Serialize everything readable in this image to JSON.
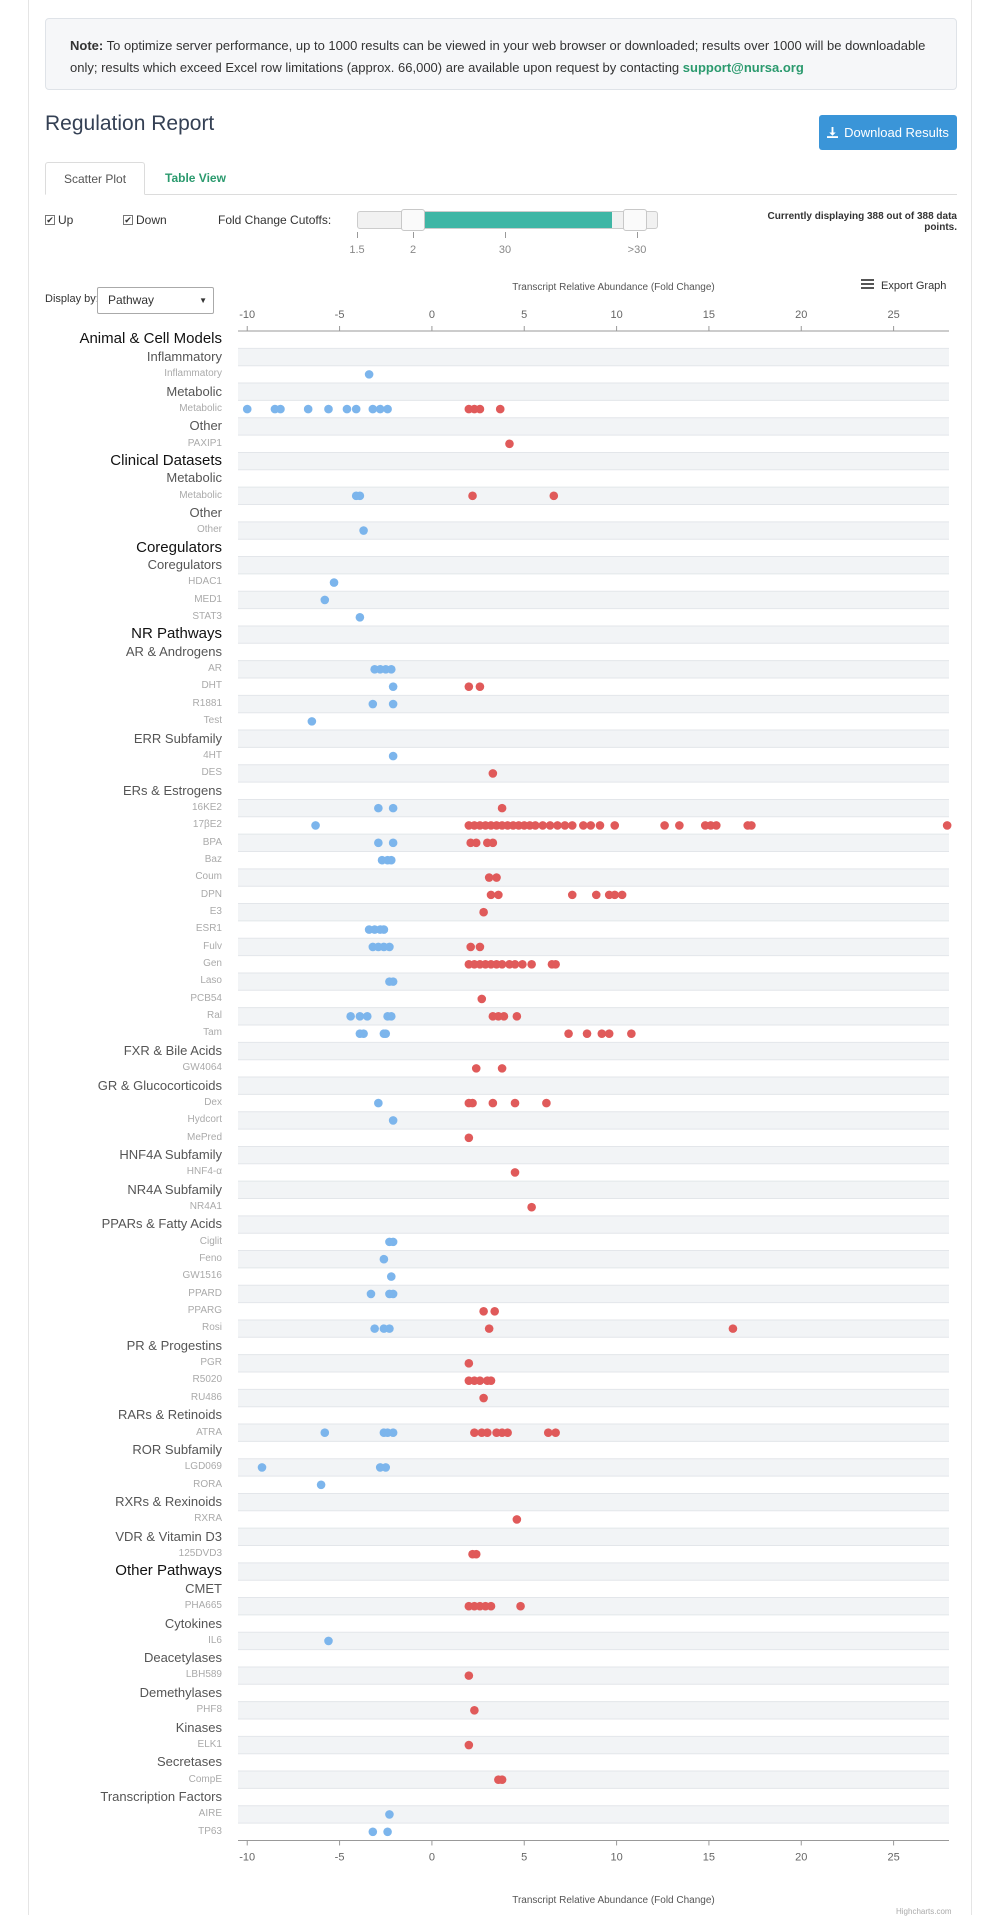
{
  "note": {
    "bold": "Note:",
    "text": " To optimize server performance, up to 1000 results can be viewed in your web browser or downloaded; results over 1000 will be downloadable only; results which exceed Excel row limitations (approx. 66,000) are available upon request by contacting ",
    "email": "support@nursa.org"
  },
  "report": {
    "title": "Regulation Report",
    "download_label": "Download Results"
  },
  "tabs": [
    {
      "label": "Scatter Plot"
    },
    {
      "label": "Table View"
    }
  ],
  "filters": {
    "up_label": "Up",
    "down_label": "Down",
    "up_checked": true,
    "down_checked": true,
    "fold_change_label": "Fold Change Cutoffs:",
    "slider_ticks": [
      "1.5",
      "2",
      "30",
      ">30"
    ],
    "slider_low": "2",
    "slider_high": ">30",
    "display_status": "Currently displaying 388 out of 388 data points."
  },
  "display_by": {
    "label": "Display by:",
    "selected": "Pathway"
  },
  "colors": {
    "down": "#7cb5ec",
    "up": "#e05a5a",
    "band": "#f2f4f6",
    "teal": "#3fb6a5",
    "button": "#3a95d8"
  },
  "icons": {
    "download": "download-icon",
    "export": "menu-icon"
  },
  "chart_data": {
    "type": "scatter",
    "xlabel": "Transcript Relative Abundance (Fold Change)",
    "xlim": [
      -10.5,
      28
    ],
    "xticks": [
      -10,
      -5,
      0,
      5,
      10,
      15,
      20,
      25
    ],
    "export_label": "Export Graph",
    "credit": "Highcharts.com",
    "series": [
      {
        "name": "Down",
        "color": "#7cb5ec"
      },
      {
        "name": "Up",
        "color": "#e05a5a"
      }
    ],
    "rows": [
      {
        "label": "Animal & Cell Models",
        "level": 0,
        "points": []
      },
      {
        "label": "Inflammatory",
        "level": 1,
        "points": []
      },
      {
        "label": "Inflammatory",
        "level": 2,
        "points": [
          -3.4
        ]
      },
      {
        "label": "Metabolic",
        "level": 1,
        "points": []
      },
      {
        "label": "Metabolic",
        "level": 2,
        "points": [
          -10,
          -8.5,
          -8.2,
          -6.7,
          -5.6,
          -4.6,
          -4.1,
          -3.2,
          -2.8,
          -2.4,
          2,
          2.3,
          2.6,
          3.7
        ]
      },
      {
        "label": "Other",
        "level": 1,
        "points": []
      },
      {
        "label": "PAXIP1",
        "level": 2,
        "points": [
          4.2
        ]
      },
      {
        "label": "Clinical Datasets",
        "level": 0,
        "points": []
      },
      {
        "label": "Metabolic",
        "level": 1,
        "points": []
      },
      {
        "label": "Metabolic",
        "level": 2,
        "points": [
          -4.1,
          -3.9,
          2.2,
          6.6
        ]
      },
      {
        "label": "Other",
        "level": 1,
        "points": []
      },
      {
        "label": "Other",
        "level": 2,
        "points": [
          -3.7
        ]
      },
      {
        "label": "Coregulators",
        "level": 0,
        "points": []
      },
      {
        "label": "Coregulators",
        "level": 1,
        "points": []
      },
      {
        "label": "HDAC1",
        "level": 2,
        "points": [
          -5.3
        ]
      },
      {
        "label": "MED1",
        "level": 2,
        "points": [
          -5.8
        ]
      },
      {
        "label": "STAT3",
        "level": 2,
        "points": [
          -3.9
        ]
      },
      {
        "label": "NR Pathways",
        "level": 0,
        "points": []
      },
      {
        "label": "AR & Androgens",
        "level": 1,
        "points": []
      },
      {
        "label": "AR",
        "level": 2,
        "points": [
          -3.1,
          -2.8,
          -2.5,
          -2.2
        ]
      },
      {
        "label": "DHT",
        "level": 2,
        "points": [
          -2.1,
          2,
          2.6
        ]
      },
      {
        "label": "R1881",
        "level": 2,
        "points": [
          -3.2,
          -2.1
        ]
      },
      {
        "label": "Test",
        "level": 2,
        "points": [
          -6.5
        ]
      },
      {
        "label": "ERR Subfamily",
        "level": 1,
        "points": []
      },
      {
        "label": "4HT",
        "level": 2,
        "points": [
          -2.1
        ]
      },
      {
        "label": "DES",
        "level": 2,
        "points": [
          3.3
        ]
      },
      {
        "label": "ERs & Estrogens",
        "level": 1,
        "points": []
      },
      {
        "label": "16KE2",
        "level": 2,
        "points": [
          -2.9,
          -2.1,
          3.8
        ]
      },
      {
        "label": "17βE2",
        "level": 2,
        "points": [
          -6.3,
          2,
          2.3,
          2.6,
          2.9,
          3.2,
          3.5,
          3.8,
          4.1,
          4.4,
          4.7,
          5,
          5.3,
          5.6,
          6,
          6.4,
          6.8,
          7.2,
          7.6,
          8.2,
          8.6,
          9.1,
          9.9,
          12.6,
          13.4,
          14.8,
          15.1,
          15.4,
          17.1,
          17.3,
          27.9
        ]
      },
      {
        "label": "BPA",
        "level": 2,
        "points": [
          -2.9,
          -2.1,
          2.1,
          2.4,
          3,
          3.3
        ]
      },
      {
        "label": "Baz",
        "level": 2,
        "points": [
          -2.7,
          -2.4,
          -2.2
        ]
      },
      {
        "label": "Coum",
        "level": 2,
        "points": [
          3.1,
          3.5
        ]
      },
      {
        "label": "DPN",
        "level": 2,
        "points": [
          3.2,
          3.6,
          7.6,
          8.9,
          9.6,
          9.9,
          10.3
        ]
      },
      {
        "label": "E3",
        "level": 2,
        "points": [
          2.8
        ]
      },
      {
        "label": "ESR1",
        "level": 2,
        "points": [
          -3.4,
          -3.1,
          -2.8,
          -2.6
        ]
      },
      {
        "label": "Fulv",
        "level": 2,
        "points": [
          -3.2,
          -2.9,
          -2.6,
          -2.3,
          2.1,
          2.6
        ]
      },
      {
        "label": "Gen",
        "level": 2,
        "points": [
          2,
          2.3,
          2.6,
          2.9,
          3.2,
          3.5,
          3.8,
          4.2,
          4.5,
          4.9,
          5.4,
          6.5,
          6.7
        ]
      },
      {
        "label": "Laso",
        "level": 2,
        "points": [
          -2.3,
          -2.1
        ]
      },
      {
        "label": "PCB54",
        "level": 2,
        "points": [
          2.7
        ]
      },
      {
        "label": "Ral",
        "level": 2,
        "points": [
          -4.4,
          -3.9,
          -3.5,
          -2.4,
          -2.2,
          3.3,
          3.6,
          3.9,
          4.6
        ]
      },
      {
        "label": "Tam",
        "level": 2,
        "points": [
          -3.9,
          -3.7,
          -2.6,
          -2.5,
          7.4,
          8.4,
          9.2,
          9.6,
          10.8
        ]
      },
      {
        "label": "FXR & Bile Acids",
        "level": 1,
        "points": []
      },
      {
        "label": "GW4064",
        "level": 2,
        "points": [
          2.4,
          3.8
        ]
      },
      {
        "label": "GR & Glucocorticoids",
        "level": 1,
        "points": []
      },
      {
        "label": "Dex",
        "level": 2,
        "points": [
          -2.9,
          2,
          2.2,
          3.3,
          4.5,
          6.2
        ]
      },
      {
        "label": "Hydcort",
        "level": 2,
        "points": [
          -2.1
        ]
      },
      {
        "label": "MePred",
        "level": 2,
        "points": [
          2
        ]
      },
      {
        "label": "HNF4A Subfamily",
        "level": 1,
        "points": []
      },
      {
        "label": "HNF4-α",
        "level": 2,
        "points": [
          4.5
        ]
      },
      {
        "label": "NR4A Subfamily",
        "level": 1,
        "points": []
      },
      {
        "label": "NR4A1",
        "level": 2,
        "points": [
          5.4
        ]
      },
      {
        "label": "PPARs & Fatty Acids",
        "level": 1,
        "points": []
      },
      {
        "label": "Ciglit",
        "level": 2,
        "points": [
          -2.3,
          -2.1
        ]
      },
      {
        "label": "Feno",
        "level": 2,
        "points": [
          -2.6
        ]
      },
      {
        "label": "GW1516",
        "level": 2,
        "points": [
          -2.2
        ]
      },
      {
        "label": "PPARD",
        "level": 2,
        "points": [
          -3.3,
          -2.3,
          -2.1
        ]
      },
      {
        "label": "PPARG",
        "level": 2,
        "points": [
          2.8,
          3.4
        ]
      },
      {
        "label": "Rosi",
        "level": 2,
        "points": [
          -3.1,
          -2.6,
          -2.3,
          3.1,
          16.3
        ]
      },
      {
        "label": "PR & Progestins",
        "level": 1,
        "points": []
      },
      {
        "label": "PGR",
        "level": 2,
        "points": [
          2
        ]
      },
      {
        "label": "R5020",
        "level": 2,
        "points": [
          2,
          2.3,
          2.6,
          3,
          3.2
        ]
      },
      {
        "label": "RU486",
        "level": 2,
        "points": [
          2.8
        ]
      },
      {
        "label": "RARs & Retinoids",
        "level": 1,
        "points": []
      },
      {
        "label": "ATRA",
        "level": 2,
        "points": [
          -5.8,
          -2.6,
          -2.4,
          -2.1,
          2.3,
          2.7,
          3,
          3.5,
          3.8,
          4.1,
          6.3,
          6.7
        ]
      },
      {
        "label": "ROR Subfamily",
        "level": 1,
        "points": []
      },
      {
        "label": "LGD069",
        "level": 2,
        "points": [
          -9.2,
          -2.8,
          -2.5
        ]
      },
      {
        "label": "RORA",
        "level": 2,
        "points": [
          -6
        ]
      },
      {
        "label": "RXRs & Rexinoids",
        "level": 1,
        "points": []
      },
      {
        "label": "RXRA",
        "level": 2,
        "points": [
          4.6
        ]
      },
      {
        "label": "VDR & Vitamin D3",
        "level": 1,
        "points": []
      },
      {
        "label": "125DVD3",
        "level": 2,
        "points": [
          2.2,
          2.4
        ]
      },
      {
        "label": "Other Pathways",
        "level": 0,
        "points": []
      },
      {
        "label": "CMET",
        "level": 1,
        "points": []
      },
      {
        "label": "PHA665",
        "level": 2,
        "points": [
          2,
          2.3,
          2.6,
          2.9,
          3.2,
          4.8
        ]
      },
      {
        "label": "Cytokines",
        "level": 1,
        "points": []
      },
      {
        "label": "IL6",
        "level": 2,
        "points": [
          -5.6
        ]
      },
      {
        "label": "Deacetylases",
        "level": 1,
        "points": []
      },
      {
        "label": "LBH589",
        "level": 2,
        "points": [
          2
        ]
      },
      {
        "label": "Demethylases",
        "level": 1,
        "points": []
      },
      {
        "label": "PHF8",
        "level": 2,
        "points": [
          2.3
        ]
      },
      {
        "label": "Kinases",
        "level": 1,
        "points": []
      },
      {
        "label": "ELK1",
        "level": 2,
        "points": [
          2
        ]
      },
      {
        "label": "Secretases",
        "level": 1,
        "points": []
      },
      {
        "label": "CompE",
        "level": 2,
        "points": [
          3.6,
          3.8
        ]
      },
      {
        "label": "Transcription Factors",
        "level": 1,
        "points": []
      },
      {
        "label": "AIRE",
        "level": 2,
        "points": [
          -2.3
        ]
      },
      {
        "label": "TP63",
        "level": 2,
        "points": [
          -3.2,
          -2.4
        ]
      }
    ]
  }
}
